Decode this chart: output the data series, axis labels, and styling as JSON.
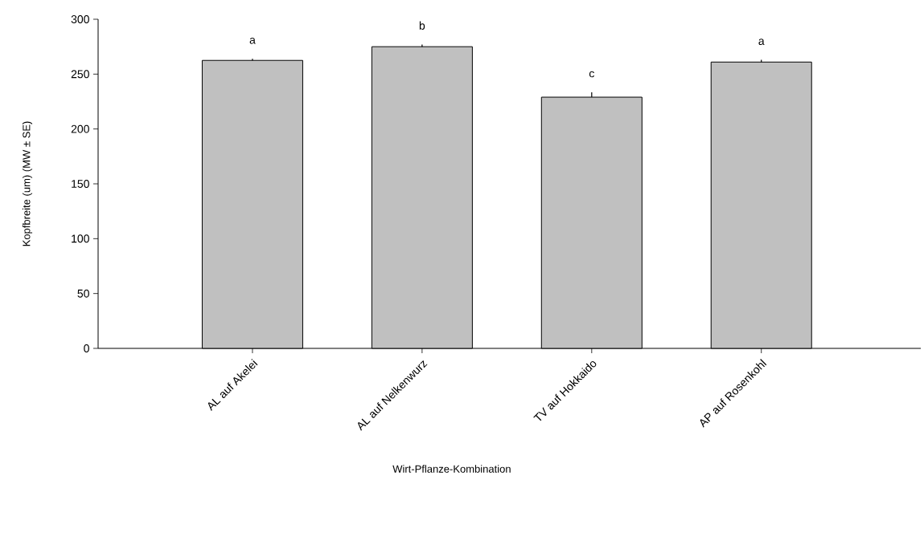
{
  "chart_data": {
    "type": "bar",
    "xlabel": "Wirt-Pflanze-Kombination",
    "ylabel": "Kopfbreite (um) (MW ± SE)",
    "categories": [
      "AL auf Akelei",
      "AL auf Nelkenwurz",
      "TV auf Hokkaido",
      "AP auf Rosenkohl"
    ],
    "values": [
      262.5,
      275,
      229,
      261
    ],
    "errors": [
      1.5,
      2,
      4.5,
      2
    ],
    "color": "#c0c0c0",
    "ylim": [
      0,
      300
    ],
    "yticks": [
      0,
      50,
      100,
      150,
      200,
      250,
      300
    ],
    "grid": false,
    "annotations": [
      "a",
      "b",
      "c",
      "a"
    ]
  }
}
